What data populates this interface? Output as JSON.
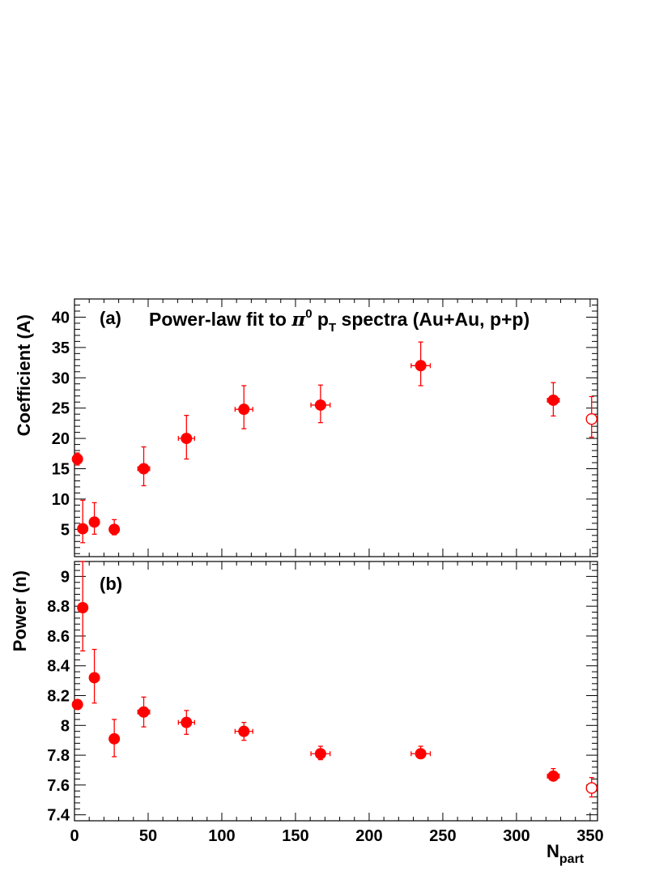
{
  "title": {
    "prefix": "Power-law fit to ",
    "pi": "π",
    "pi_sup": "0",
    "p": " p",
    "p_sub": "T",
    "suffix": " spectra (Au+Au, p+p)"
  },
  "xlabel": {
    "main": "N",
    "sub": "part"
  },
  "colors": {
    "marker": "#ff0000",
    "axis": "#000000",
    "background": "#ffffff"
  },
  "chart_data": [
    {
      "type": "scatter",
      "panel_label": "(a)",
      "ylabel": "Coefficient (A)",
      "xlim": [
        0,
        355
      ],
      "ylim": [
        0.5,
        43
      ],
      "xticks": [
        0,
        50,
        100,
        150,
        200,
        250,
        300,
        350
      ],
      "yticks": [
        5,
        10,
        15,
        20,
        25,
        30,
        35,
        40
      ],
      "yticklabels": [
        "5",
        "10",
        "15",
        "20",
        "25",
        "30",
        "35",
        "40"
      ],
      "series": [
        {
          "marker": "filled-circle",
          "points": [
            {
              "x": 2,
              "xerr": 0,
              "y": 16.6,
              "ylo": 15.6,
              "yhi": 17.6
            },
            {
              "x": 5.6,
              "xerr": 1,
              "y": 5.1,
              "ylo": 2.8,
              "yhi": 9.8
            },
            {
              "x": 13.5,
              "xerr": 1.5,
              "y": 6.2,
              "ylo": 4.2,
              "yhi": 9.4
            },
            {
              "x": 27,
              "xerr": 2.5,
              "y": 5.0,
              "ylo": 4.1,
              "yhi": 6.6
            },
            {
              "x": 47,
              "xerr": 4,
              "y": 15.0,
              "ylo": 12.2,
              "yhi": 18.6
            },
            {
              "x": 76,
              "xerr": 5.5,
              "y": 20.0,
              "ylo": 16.6,
              "yhi": 23.8
            },
            {
              "x": 115,
              "xerr": 6,
              "y": 24.8,
              "ylo": 21.6,
              "yhi": 28.7
            },
            {
              "x": 167,
              "xerr": 6.5,
              "y": 25.5,
              "ylo": 22.6,
              "yhi": 28.8
            },
            {
              "x": 235,
              "xerr": 6.5,
              "y": 32.0,
              "ylo": 28.7,
              "yhi": 35.9
            },
            {
              "x": 325,
              "xerr": 4,
              "y": 26.3,
              "ylo": 23.7,
              "yhi": 29.2
            }
          ]
        },
        {
          "marker": "open-circle",
          "points": [
            {
              "x": 351,
              "xerr": 0,
              "y": 23.2,
              "ylo": 20.2,
              "yhi": 26.9
            }
          ]
        }
      ]
    },
    {
      "type": "scatter",
      "panel_label": "(b)",
      "ylabel": "Power (n)",
      "xlim": [
        0,
        355
      ],
      "ylim": [
        7.36,
        9.1
      ],
      "xticks": [
        0,
        50,
        100,
        150,
        200,
        250,
        300,
        350
      ],
      "xticklabels": [
        "0",
        "50",
        "100",
        "150",
        "200",
        "250",
        "300",
        "350"
      ],
      "yticks": [
        7.4,
        7.6,
        7.8,
        8.0,
        8.2,
        8.4,
        8.6,
        8.8,
        9.0
      ],
      "yticklabels": [
        "7.4",
        "7.6",
        "7.8",
        "8",
        "8.2",
        "8.4",
        "8.6",
        "8.8",
        "9"
      ],
      "series": [
        {
          "marker": "filled-circle",
          "points": [
            {
              "x": 2,
              "xerr": 0,
              "y": 8.14,
              "ylo": 8.12,
              "yhi": 8.16
            },
            {
              "x": 5.6,
              "xerr": 1,
              "y": 8.79,
              "ylo": 8.5,
              "yhi": 9.1
            },
            {
              "x": 13.5,
              "xerr": 1.5,
              "y": 8.32,
              "ylo": 8.15,
              "yhi": 8.51
            },
            {
              "x": 27,
              "xerr": 2.5,
              "y": 7.91,
              "ylo": 7.79,
              "yhi": 8.04
            },
            {
              "x": 47,
              "xerr": 4,
              "y": 8.09,
              "ylo": 7.99,
              "yhi": 8.19
            },
            {
              "x": 76,
              "xerr": 5.5,
              "y": 8.02,
              "ylo": 7.94,
              "yhi": 8.1
            },
            {
              "x": 115,
              "xerr": 6,
              "y": 7.96,
              "ylo": 7.9,
              "yhi": 8.02
            },
            {
              "x": 167,
              "xerr": 6.5,
              "y": 7.81,
              "ylo": 7.77,
              "yhi": 7.86
            },
            {
              "x": 235,
              "xerr": 6.5,
              "y": 7.81,
              "ylo": 7.78,
              "yhi": 7.86
            },
            {
              "x": 325,
              "xerr": 4,
              "y": 7.66,
              "ylo": 7.63,
              "yhi": 7.71
            }
          ]
        },
        {
          "marker": "open-circle",
          "points": [
            {
              "x": 351,
              "xerr": 0,
              "y": 7.58,
              "ylo": 7.52,
              "yhi": 7.65
            }
          ]
        }
      ]
    }
  ]
}
